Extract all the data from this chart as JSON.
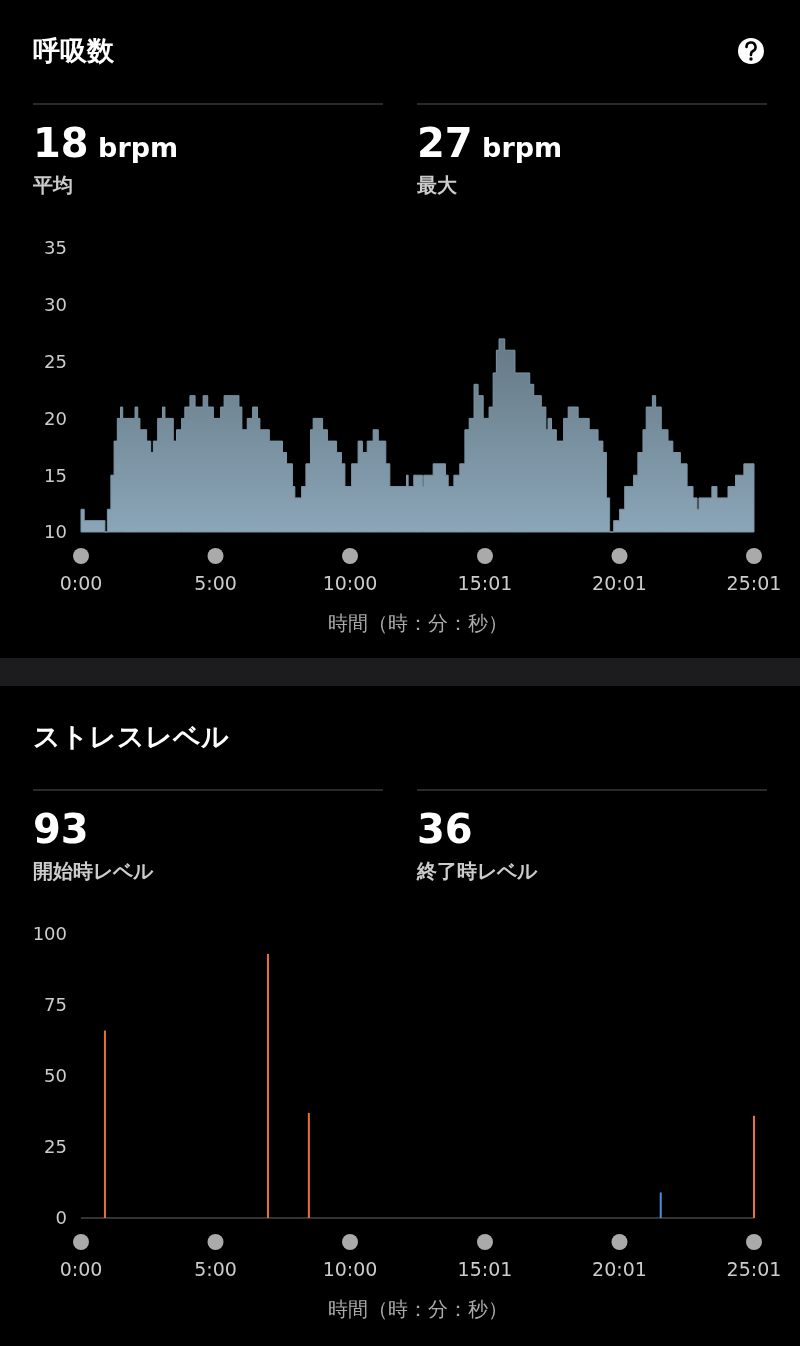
{
  "chart_data": [
    {
      "type": "area",
      "title": "呼吸数",
      "annotations": [
        "18 brpm",
        "平均",
        "27 brpm",
        "最大"
      ],
      "xlabel": "時間（時：分：秒）",
      "color": "#7d95a5",
      "x": [
        0,
        0.12,
        0.89,
        0.98,
        1.11,
        1.23,
        1.35,
        1.47,
        1.55,
        2.01,
        2.11,
        2.19,
        2.44,
        2.59,
        2.69,
        2.85,
        3.03,
        3.12,
        3.43,
        3.55,
        3.74,
        3.86,
        4.05,
        4.24,
        4.54,
        4.71,
        4.92,
        5.19,
        5.32,
        5.87,
        5.98,
        6.18,
        6.38,
        6.56,
        6.65,
        7.0,
        7.49,
        7.64,
        7.86,
        7.95,
        8.2,
        8.36,
        8.53,
        8.63,
        8.98,
        9.16,
        9.5,
        9.68,
        9.81,
        10.06,
        10.3,
        10.46,
        10.64,
        10.86,
        11.05,
        11.33,
        11.48,
        12.1,
        12.16,
        12.37,
        12.69,
        12.74,
        13.09,
        13.55,
        13.65,
        13.86,
        14.08,
        14.27,
        14.43,
        14.61,
        14.76,
        14.95,
        15.17,
        15.32,
        15.44,
        15.54,
        15.75,
        16.13,
        16.68,
        16.83,
        17.11,
        17.28,
        17.36,
        17.49,
        17.67,
        17.94,
        18.11,
        18.48,
        18.89,
        19.22,
        19.4,
        19.53,
        19.65,
        19.8,
        20.02,
        20.21,
        20.54,
        20.7,
        20.89,
        21.01,
        21.24,
        21.36,
        21.57,
        21.82,
        22.0,
        22.28,
        22.53,
        22.75,
        22.9,
        22.97,
        23.45,
        23.64,
        24.05,
        24.33,
        24.64,
        25.0167
      ],
      "values": [
        12,
        11,
        10,
        12,
        15,
        18,
        20,
        21,
        20,
        21,
        20,
        19,
        18,
        17,
        18,
        20,
        21,
        20,
        18,
        19,
        20,
        21,
        22,
        21,
        22,
        21,
        20,
        21,
        22,
        21,
        19,
        20,
        21,
        20,
        19,
        18,
        17,
        16,
        14,
        13,
        14,
        16,
        19,
        20,
        19,
        18,
        17,
        16,
        14,
        16,
        18,
        17,
        18,
        19,
        18,
        16,
        14,
        15,
        14,
        15,
        14,
        15,
        16,
        15,
        14,
        15,
        16,
        19,
        20,
        23,
        22,
        20,
        21,
        24,
        26,
        27,
        26,
        24,
        23,
        22,
        21,
        19,
        20,
        19,
        18,
        20,
        21,
        20,
        19,
        18,
        17,
        13,
        10,
        11,
        12,
        14,
        15,
        17,
        19,
        21,
        22,
        21,
        19,
        18,
        17,
        16,
        14,
        13,
        12,
        13,
        14,
        13,
        14,
        15,
        16,
        16
      ],
      "xlim": [
        0,
        25.0167
      ],
      "xticks": [
        {
          "value": 0,
          "label": "0:00"
        },
        {
          "value": 5,
          "label": "5:00"
        },
        {
          "value": 10,
          "label": "10:00"
        },
        {
          "value": 15.0167,
          "label": "15:01"
        },
        {
          "value": 20.0167,
          "label": "20:01"
        },
        {
          "value": 25.0167,
          "label": "25:01"
        }
      ],
      "ylim": [
        10,
        35
      ],
      "yticks": [
        10,
        15,
        20,
        25,
        30,
        35
      ]
    },
    {
      "type": "bar",
      "title": "ストレスレベル",
      "annotations": [
        "93",
        "開始時レベル",
        "36",
        "終了時レベル"
      ],
      "xlabel": "時間（時：分：秒）",
      "x": [
        0.89,
        6.95,
        8.47,
        21.55,
        25.0167
      ],
      "values": [
        66,
        93,
        37,
        9,
        36
      ],
      "colors": [
        "#e8703a",
        "#e8703a",
        "#e8703a",
        "#4a90d9",
        "#e8703a"
      ],
      "xlim": [
        0,
        25.0167
      ],
      "xticks": [
        {
          "value": 0,
          "label": "0:00"
        },
        {
          "value": 5,
          "label": "5:00"
        },
        {
          "value": 10,
          "label": "10:00"
        },
        {
          "value": 15.0167,
          "label": "15:01"
        },
        {
          "value": 20.0167,
          "label": "20:01"
        },
        {
          "value": 25.0167,
          "label": "25:01"
        }
      ],
      "ylim": [
        0,
        100
      ],
      "yticks": [
        0,
        25,
        50,
        75,
        100
      ]
    }
  ]
}
